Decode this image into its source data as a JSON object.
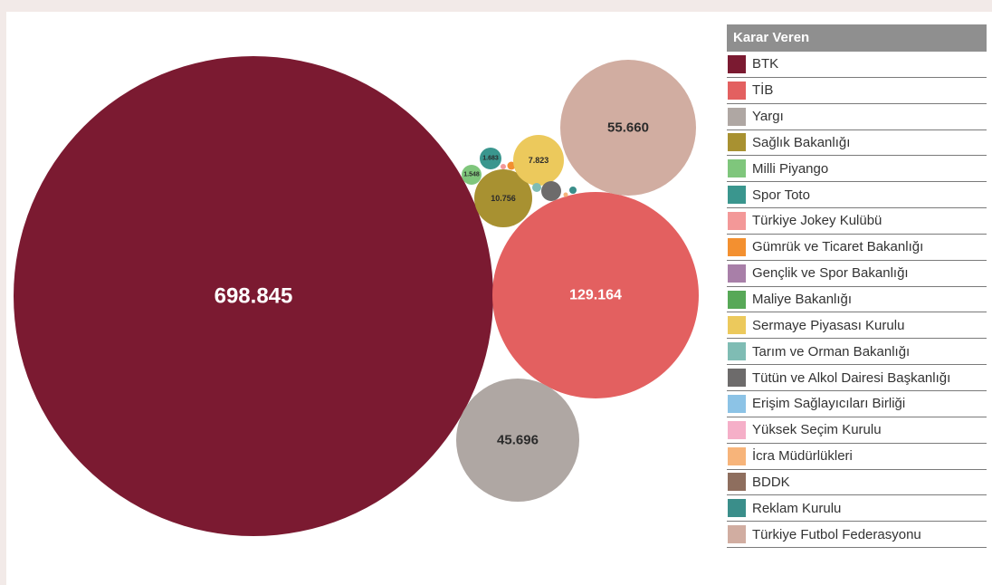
{
  "chart_data": {
    "type": "bubble",
    "legend_title": "Karar Veren",
    "legend_position": "right",
    "series": [
      {
        "name": "BTK",
        "value": 698845,
        "label": "698.845",
        "color": "#7b1a31"
      },
      {
        "name": "TİB",
        "value": 129164,
        "label": "129.164",
        "color": "#e36060"
      },
      {
        "name": "Yargı",
        "value": 45696,
        "label": "45.696",
        "color": "#afa7a3"
      },
      {
        "name": "Sağlık Bakanlığı",
        "value": 10756,
        "label": "10.756",
        "color": "#a89131"
      },
      {
        "name": "Milli Piyango",
        "value": 1548,
        "label": "1.548",
        "color": "#7fc67c"
      },
      {
        "name": "Spor Toto",
        "value": 1683,
        "label": "1.683",
        "color": "#3a968e"
      },
      {
        "name": "Türkiye Jokey Kulübü",
        "value": null,
        "label": "",
        "color": "#f39898"
      },
      {
        "name": "Gümrük ve Ticaret Bakanlığı",
        "value": null,
        "label": "",
        "color": "#f39030"
      },
      {
        "name": "Gençlik ve Spor Bakanlığı",
        "value": null,
        "label": "",
        "color": "#a87fa8"
      },
      {
        "name": "Maliye Bakanlığı",
        "value": null,
        "label": "",
        "color": "#57a857"
      },
      {
        "name": "Sermaye Piyasası Kurulu",
        "value": 7823,
        "label": "7.823",
        "color": "#ecc95c"
      },
      {
        "name": "Tarım ve Orman Bakanlığı",
        "value": null,
        "label": "",
        "color": "#7fbcb4"
      },
      {
        "name": "Tütün ve Alkol Dairesi Başkanlığı",
        "value": null,
        "label": "",
        "color": "#6d6b6b"
      },
      {
        "name": "Erişim Sağlayıcıları Birliği",
        "value": null,
        "label": "",
        "color": "#8cc3e6"
      },
      {
        "name": "Yüksek Seçim Kurulu",
        "value": null,
        "label": "",
        "color": "#f5afc8"
      },
      {
        "name": "İcra Müdürlükleri",
        "value": null,
        "label": "",
        "color": "#f7b47a"
      },
      {
        "name": "BDDK",
        "value": null,
        "label": "",
        "color": "#8e6e5e"
      },
      {
        "name": "Reklam Kurulu",
        "value": null,
        "label": "",
        "color": "#3a8e8a"
      },
      {
        "name": "Türkiye Futbol Federasyonu",
        "value": 55660,
        "label": "55.660",
        "color": "#d1ada1"
      }
    ]
  }
}
